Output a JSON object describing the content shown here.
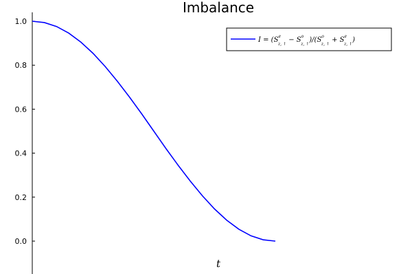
{
  "chart_data": {
    "type": "line",
    "title": "Imbalance",
    "xlabel": "t",
    "ylabel": "",
    "ylim": [
      -0.14,
      1.04
    ],
    "yticks": [
      "0.0",
      "0.2",
      "0.4",
      "0.6",
      "0.8",
      "1.0"
    ],
    "grid": false,
    "legend_position": "top-right",
    "series": [
      {
        "name": "I = (S^e_{z,↑} − S^o_{z,↑}) / (S^o_{z,↑} + S^e_{z,↑})",
        "color": "#0000ff",
        "x": [
          0.0,
          0.05,
          0.1,
          0.15,
          0.2,
          0.25,
          0.3,
          0.35,
          0.4,
          0.45,
          0.5,
          0.55,
          0.6,
          0.65,
          0.7,
          0.75,
          0.8,
          0.85,
          0.9,
          0.95,
          1.0
        ],
        "y": [
          1.0,
          0.994,
          0.976,
          0.946,
          0.905,
          0.854,
          0.794,
          0.727,
          0.655,
          0.579,
          0.5,
          0.421,
          0.345,
          0.273,
          0.206,
          0.146,
          0.095,
          0.054,
          0.024,
          0.006,
          0.0
        ]
      }
    ]
  },
  "legend": {
    "label_parts": {
      "lhs": "I = (S",
      "e1": "e",
      "sub1": "z, ↑",
      "minus": " − S",
      "o1": "o",
      "sub2": "z, ↑",
      "mid": ")/(S",
      "o2": "o",
      "sub3": "z, ↑",
      "plus": " + S",
      "e2": "e",
      "sub4": "z, ↑",
      "end": ")"
    }
  }
}
